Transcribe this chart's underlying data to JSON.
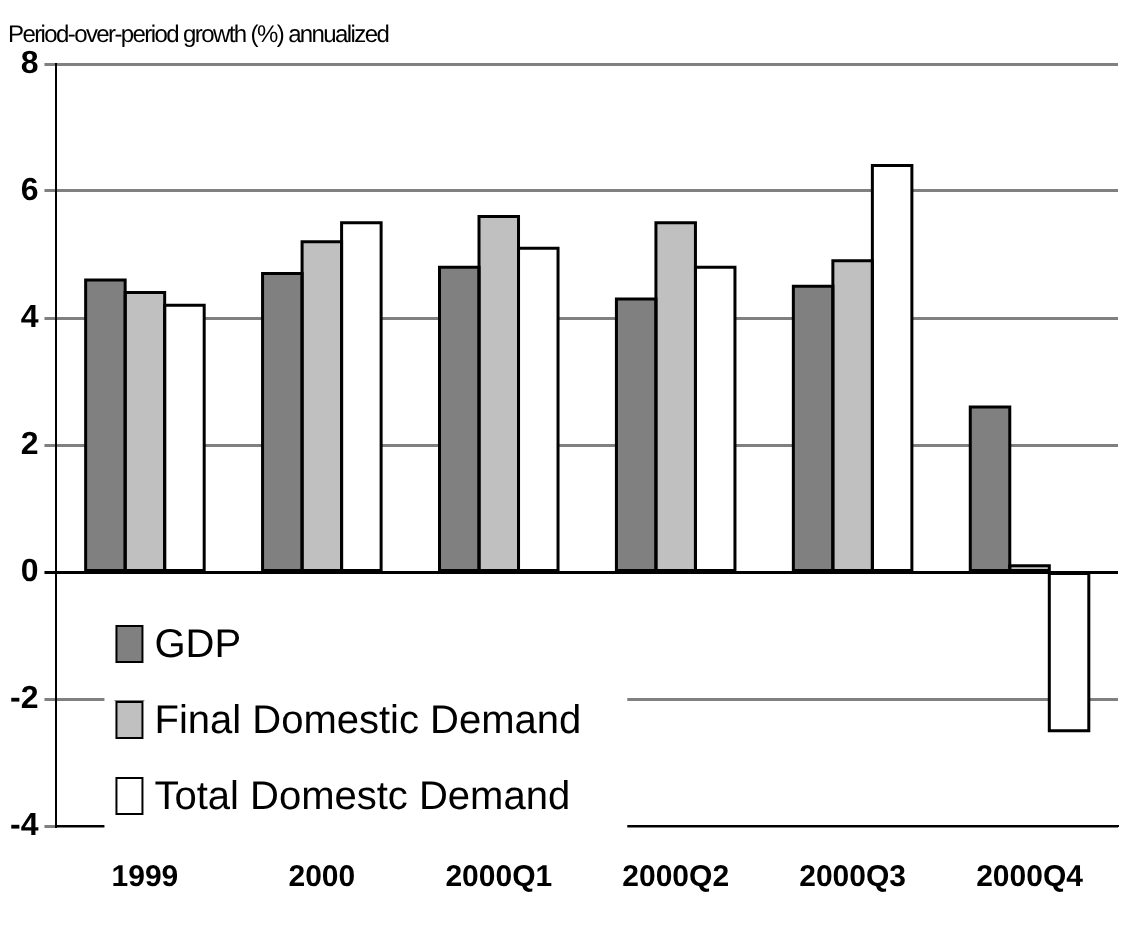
{
  "chart_data": {
    "type": "bar",
    "ylabel": "Period-over-period growth (%) annualized",
    "categories": [
      "1999",
      "2000",
      "2000Q1",
      "2000Q2",
      "2000Q3",
      "2000Q4"
    ],
    "series": [
      {
        "name": "GDP",
        "color": "#808080",
        "values": [
          4.6,
          4.7,
          4.8,
          4.3,
          4.5,
          2.6
        ]
      },
      {
        "name": "Final Domestic Demand",
        "color": "#c0c0c0",
        "values": [
          4.4,
          5.2,
          5.6,
          5.5,
          4.9,
          0.1
        ]
      },
      {
        "name": "Total Domestc Demand",
        "color": "#ffffff",
        "values": [
          4.2,
          5.5,
          5.1,
          4.8,
          6.4,
          -2.5
        ]
      }
    ],
    "ylim": [
      -4,
      8
    ],
    "yticks": [
      -4,
      -2,
      0,
      2,
      4,
      6,
      8
    ],
    "grid": "y",
    "legend": "bottom left"
  }
}
